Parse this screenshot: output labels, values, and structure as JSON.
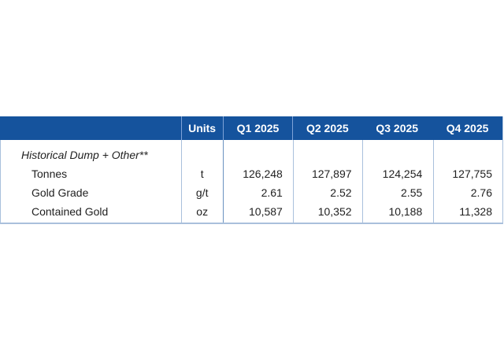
{
  "table": {
    "header": {
      "units_label": "Units",
      "quarters": [
        "Q1 2025",
        "Q2 2025",
        "Q3 2025",
        "Q4 2025"
      ]
    },
    "section_label": "Historical Dump + Other**",
    "rows": [
      {
        "label": "Tonnes",
        "unit": "t",
        "values": [
          "126,248",
          "127,897",
          "124,254",
          "127,755"
        ]
      },
      {
        "label": "Gold Grade",
        "unit": "g/t",
        "values": [
          "2.61",
          "2.52",
          "2.55",
          "2.76"
        ]
      },
      {
        "label": "Contained Gold",
        "unit": "oz",
        "values": [
          "10,587",
          "10,352",
          "10,188",
          "11,328"
        ]
      }
    ],
    "colors": {
      "header_bg": "#15539D",
      "header_text": "#FFFFFF",
      "grid_pale": "#A9C0DC",
      "grid_medium": "#6A92C0",
      "body_text": "#1F1F1F"
    }
  }
}
